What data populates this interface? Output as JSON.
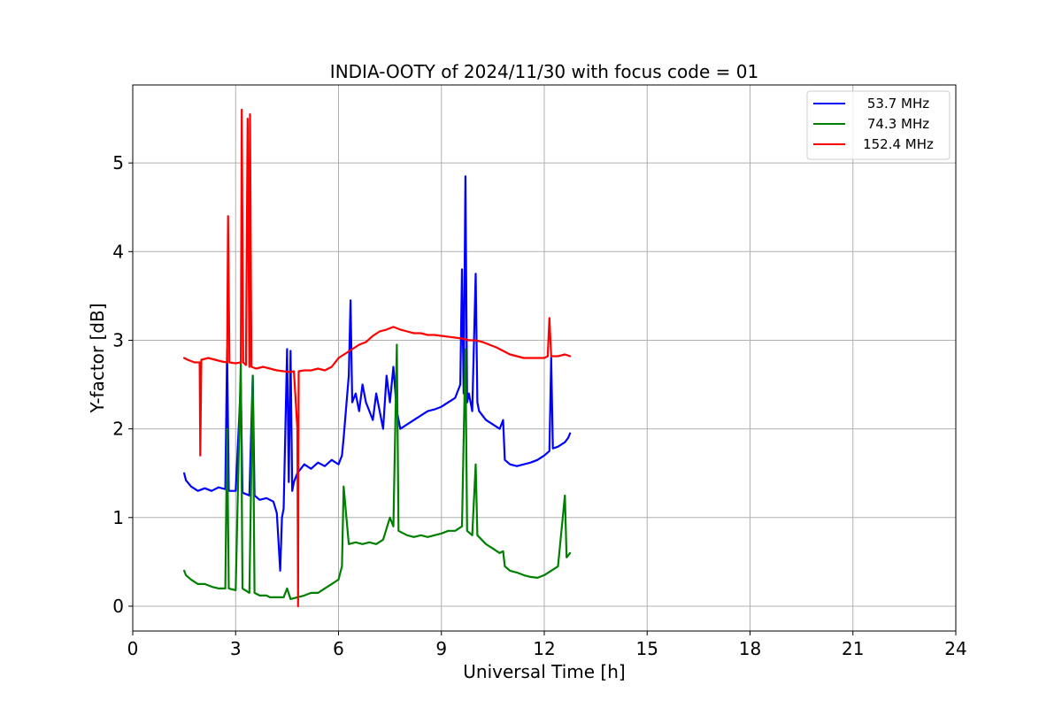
{
  "chart_data": {
    "type": "line",
    "title": "INDIA-OOTY of 2024/11/30 with focus code = 01",
    "xlabel": "Universal Time [h]",
    "ylabel": "Y-factor [dB]",
    "xlim": [
      0,
      24
    ],
    "ylim": [
      -0.28,
      5.88
    ],
    "x_ticks": [
      0,
      3,
      6,
      9,
      12,
      15,
      18,
      21,
      24
    ],
    "y_ticks": [
      0,
      1,
      2,
      3,
      4,
      5
    ],
    "grid": true,
    "legend_position": "top-right",
    "series": [
      {
        "name": "53.7 MHz",
        "color": "#0000ff",
        "points": [
          [
            1.5,
            1.5
          ],
          [
            1.55,
            1.42
          ],
          [
            1.7,
            1.35
          ],
          [
            1.9,
            1.3
          ],
          [
            2.1,
            1.33
          ],
          [
            2.3,
            1.3
          ],
          [
            2.5,
            1.34
          ],
          [
            2.7,
            1.32
          ],
          [
            2.75,
            2.9
          ],
          [
            2.8,
            1.3
          ],
          [
            3.0,
            1.3
          ],
          [
            3.15,
            2.5
          ],
          [
            3.2,
            1.28
          ],
          [
            3.4,
            1.25
          ],
          [
            3.5,
            2.6
          ],
          [
            3.55,
            1.25
          ],
          [
            3.7,
            1.2
          ],
          [
            3.9,
            1.22
          ],
          [
            4.0,
            1.2
          ],
          [
            4.1,
            1.18
          ],
          [
            4.2,
            1.05
          ],
          [
            4.3,
            0.4
          ],
          [
            4.35,
            1.0
          ],
          [
            4.4,
            1.1
          ],
          [
            4.5,
            2.9
          ],
          [
            4.55,
            1.4
          ],
          [
            4.6,
            2.88
          ],
          [
            4.65,
            1.3
          ],
          [
            4.7,
            1.4
          ],
          [
            4.8,
            1.5
          ],
          [
            5.0,
            1.6
          ],
          [
            5.2,
            1.55
          ],
          [
            5.4,
            1.62
          ],
          [
            5.6,
            1.58
          ],
          [
            5.8,
            1.65
          ],
          [
            6.0,
            1.6
          ],
          [
            6.1,
            1.7
          ],
          [
            6.15,
            1.9
          ],
          [
            6.3,
            2.6
          ],
          [
            6.35,
            3.45
          ],
          [
            6.4,
            2.3
          ],
          [
            6.5,
            2.4
          ],
          [
            6.6,
            2.2
          ],
          [
            6.7,
            2.5
          ],
          [
            6.8,
            2.3
          ],
          [
            6.9,
            2.2
          ],
          [
            7.0,
            2.1
          ],
          [
            7.1,
            2.4
          ],
          [
            7.2,
            2.2
          ],
          [
            7.3,
            2.0
          ],
          [
            7.4,
            2.6
          ],
          [
            7.5,
            2.3
          ],
          [
            7.6,
            2.7
          ],
          [
            7.7,
            2.2
          ],
          [
            7.8,
            2.0
          ],
          [
            8.0,
            2.05
          ],
          [
            8.2,
            2.1
          ],
          [
            8.4,
            2.15
          ],
          [
            8.6,
            2.2
          ],
          [
            8.8,
            2.22
          ],
          [
            9.0,
            2.25
          ],
          [
            9.2,
            2.3
          ],
          [
            9.4,
            2.35
          ],
          [
            9.55,
            2.5
          ],
          [
            9.6,
            3.8
          ],
          [
            9.65,
            2.4
          ],
          [
            9.7,
            4.85
          ],
          [
            9.75,
            2.3
          ],
          [
            9.8,
            2.4
          ],
          [
            9.9,
            2.2
          ],
          [
            10.0,
            3.75
          ],
          [
            10.05,
            2.3
          ],
          [
            10.1,
            2.2
          ],
          [
            10.3,
            2.1
          ],
          [
            10.5,
            2.05
          ],
          [
            10.7,
            2.0
          ],
          [
            10.8,
            2.1
          ],
          [
            10.85,
            1.65
          ],
          [
            11.0,
            1.6
          ],
          [
            11.2,
            1.58
          ],
          [
            11.4,
            1.6
          ],
          [
            11.6,
            1.62
          ],
          [
            11.8,
            1.65
          ],
          [
            12.0,
            1.7
          ],
          [
            12.15,
            1.75
          ],
          [
            12.2,
            2.8
          ],
          [
            12.25,
            1.78
          ],
          [
            12.4,
            1.8
          ],
          [
            12.6,
            1.85
          ],
          [
            12.7,
            1.9
          ],
          [
            12.75,
            1.95
          ]
        ]
      },
      {
        "name": "74.3 MHz",
        "color": "#008000",
        "points": [
          [
            1.5,
            0.4
          ],
          [
            1.55,
            0.35
          ],
          [
            1.7,
            0.3
          ],
          [
            1.9,
            0.25
          ],
          [
            2.1,
            0.25
          ],
          [
            2.3,
            0.22
          ],
          [
            2.5,
            0.2
          ],
          [
            2.7,
            0.2
          ],
          [
            2.75,
            2.0
          ],
          [
            2.8,
            0.2
          ],
          [
            3.0,
            0.18
          ],
          [
            3.15,
            2.75
          ],
          [
            3.2,
            0.2
          ],
          [
            3.4,
            0.15
          ],
          [
            3.5,
            2.6
          ],
          [
            3.55,
            0.15
          ],
          [
            3.7,
            0.12
          ],
          [
            3.9,
            0.12
          ],
          [
            4.0,
            0.1
          ],
          [
            4.2,
            0.1
          ],
          [
            4.4,
            0.1
          ],
          [
            4.5,
            0.2
          ],
          [
            4.6,
            0.08
          ],
          [
            4.8,
            0.1
          ],
          [
            5.0,
            0.12
          ],
          [
            5.2,
            0.15
          ],
          [
            5.4,
            0.15
          ],
          [
            5.6,
            0.2
          ],
          [
            5.8,
            0.25
          ],
          [
            6.0,
            0.3
          ],
          [
            6.1,
            0.45
          ],
          [
            6.15,
            1.35
          ],
          [
            6.3,
            0.7
          ],
          [
            6.5,
            0.72
          ],
          [
            6.7,
            0.7
          ],
          [
            6.9,
            0.72
          ],
          [
            7.1,
            0.7
          ],
          [
            7.3,
            0.75
          ],
          [
            7.5,
            1.0
          ],
          [
            7.6,
            0.9
          ],
          [
            7.7,
            2.95
          ],
          [
            7.75,
            0.85
          ],
          [
            8.0,
            0.8
          ],
          [
            8.2,
            0.78
          ],
          [
            8.4,
            0.8
          ],
          [
            8.6,
            0.78
          ],
          [
            8.8,
            0.8
          ],
          [
            9.0,
            0.82
          ],
          [
            9.2,
            0.85
          ],
          [
            9.4,
            0.85
          ],
          [
            9.6,
            0.9
          ],
          [
            9.7,
            2.9
          ],
          [
            9.75,
            0.85
          ],
          [
            9.9,
            0.8
          ],
          [
            10.0,
            1.6
          ],
          [
            10.05,
            0.8
          ],
          [
            10.3,
            0.7
          ],
          [
            10.5,
            0.65
          ],
          [
            10.7,
            0.6
          ],
          [
            10.8,
            0.62
          ],
          [
            10.85,
            0.45
          ],
          [
            11.0,
            0.4
          ],
          [
            11.2,
            0.38
          ],
          [
            11.4,
            0.35
          ],
          [
            11.6,
            0.33
          ],
          [
            11.8,
            0.32
          ],
          [
            12.0,
            0.35
          ],
          [
            12.2,
            0.4
          ],
          [
            12.4,
            0.45
          ],
          [
            12.6,
            1.25
          ],
          [
            12.65,
            0.55
          ],
          [
            12.75,
            0.6
          ]
        ]
      },
      {
        "name": "152.4 MHz",
        "color": "#ff0000",
        "points": [
          [
            1.5,
            2.8
          ],
          [
            1.6,
            2.78
          ],
          [
            1.8,
            2.75
          ],
          [
            1.95,
            2.75
          ],
          [
            1.97,
            1.7
          ],
          [
            2.0,
            2.78
          ],
          [
            2.2,
            2.8
          ],
          [
            2.4,
            2.78
          ],
          [
            2.6,
            2.76
          ],
          [
            2.75,
            2.75
          ],
          [
            2.78,
            4.4
          ],
          [
            2.82,
            2.75
          ],
          [
            3.0,
            2.74
          ],
          [
            3.15,
            2.75
          ],
          [
            3.18,
            5.6
          ],
          [
            3.22,
            2.75
          ],
          [
            3.3,
            2.72
          ],
          [
            3.35,
            5.5
          ],
          [
            3.4,
            2.7
          ],
          [
            3.42,
            5.55
          ],
          [
            3.46,
            2.7
          ],
          [
            3.6,
            2.68
          ],
          [
            3.8,
            2.7
          ],
          [
            4.0,
            2.68
          ],
          [
            4.2,
            2.66
          ],
          [
            4.4,
            2.65
          ],
          [
            4.6,
            2.64
          ],
          [
            4.7,
            2.65
          ],
          [
            4.8,
            2.0
          ],
          [
            4.82,
            0.0
          ],
          [
            4.84,
            2.65
          ],
          [
            5.0,
            2.66
          ],
          [
            5.2,
            2.66
          ],
          [
            5.4,
            2.68
          ],
          [
            5.6,
            2.66
          ],
          [
            5.8,
            2.7
          ],
          [
            6.0,
            2.8
          ],
          [
            6.2,
            2.85
          ],
          [
            6.4,
            2.9
          ],
          [
            6.6,
            2.95
          ],
          [
            6.8,
            2.98
          ],
          [
            7.0,
            3.05
          ],
          [
            7.2,
            3.1
          ],
          [
            7.4,
            3.12
          ],
          [
            7.6,
            3.15
          ],
          [
            7.8,
            3.12
          ],
          [
            8.0,
            3.1
          ],
          [
            8.2,
            3.08
          ],
          [
            8.4,
            3.08
          ],
          [
            8.6,
            3.06
          ],
          [
            8.8,
            3.06
          ],
          [
            9.0,
            3.05
          ],
          [
            9.2,
            3.04
          ],
          [
            9.4,
            3.03
          ],
          [
            9.6,
            3.02
          ],
          [
            9.8,
            3.0
          ],
          [
            10.0,
            3.0
          ],
          [
            10.2,
            2.98
          ],
          [
            10.4,
            2.95
          ],
          [
            10.6,
            2.92
          ],
          [
            10.8,
            2.88
          ],
          [
            11.0,
            2.84
          ],
          [
            11.2,
            2.82
          ],
          [
            11.4,
            2.8
          ],
          [
            11.6,
            2.8
          ],
          [
            11.8,
            2.8
          ],
          [
            12.0,
            2.8
          ],
          [
            12.1,
            2.82
          ],
          [
            12.15,
            3.25
          ],
          [
            12.2,
            2.82
          ],
          [
            12.4,
            2.82
          ],
          [
            12.6,
            2.84
          ],
          [
            12.75,
            2.82
          ]
        ]
      }
    ]
  }
}
